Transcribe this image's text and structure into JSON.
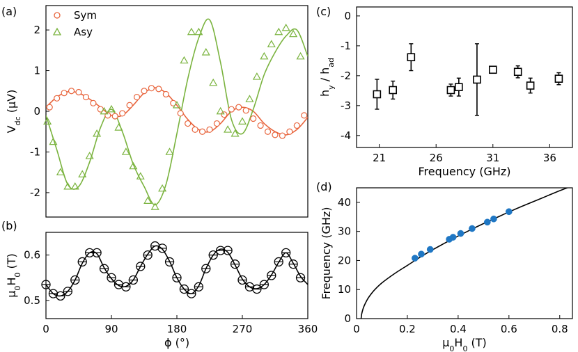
{
  "chart_data": [
    {
      "id": "a",
      "panel_label": "(a)",
      "type": "scatter",
      "xlim": [
        0,
        360
      ],
      "ylim": [
        -2.6,
        2.6
      ],
      "yticks": [
        2,
        1,
        0,
        -1,
        -2
      ],
      "ytick_labels": [
        "2",
        "1",
        "0",
        "-1",
        "-2"
      ],
      "ylabel": {
        "main": "V",
        "sub": "dc",
        "rest": " (μV)"
      },
      "legend": {
        "position": "top-left",
        "entries": [
          "Sym",
          "Asy"
        ]
      },
      "grid": false,
      "series": [
        {
          "name": "Sym",
          "color": "#e8643c",
          "marker": "circle",
          "x": [
            5,
            15,
            25,
            35,
            45,
            55,
            65,
            75,
            85,
            95,
            105,
            115,
            125,
            135,
            145,
            155,
            165,
            175,
            185,
            195,
            205,
            215,
            225,
            235,
            245,
            255,
            265,
            275,
            285,
            295,
            305,
            315,
            325,
            335,
            345,
            355
          ],
          "y": [
            0.1,
            0.32,
            0.45,
            0.5,
            0.47,
            0.35,
            0.2,
            0.05,
            -0.1,
            -0.12,
            -0.05,
            0.15,
            0.35,
            0.5,
            0.57,
            0.55,
            0.42,
            0.2,
            -0.05,
            -0.3,
            -0.45,
            -0.5,
            -0.45,
            -0.3,
            -0.08,
            0.05,
            0.1,
            0.02,
            -0.18,
            -0.35,
            -0.5,
            -0.58,
            -0.6,
            -0.5,
            -0.35,
            -0.1
          ]
        },
        {
          "name": "Asy",
          "color": "#7ab33e",
          "marker": "triangle",
          "x": [
            2,
            10,
            20,
            30,
            40,
            50,
            60,
            70,
            80,
            90,
            100,
            110,
            120,
            130,
            140,
            150,
            160,
            170,
            180,
            190,
            200,
            210,
            220,
            230,
            240,
            250,
            260,
            270,
            280,
            290,
            300,
            310,
            320,
            330,
            340,
            350
          ],
          "y": [
            -0.25,
            -0.75,
            -1.5,
            -1.85,
            -1.85,
            -1.55,
            -1.1,
            -0.55,
            0.0,
            0.05,
            -0.4,
            -1.0,
            -1.35,
            -1.6,
            -2.2,
            -2.35,
            -1.9,
            -1.0,
            0.15,
            1.25,
            1.95,
            1.95,
            1.45,
            0.7,
            0.0,
            -0.45,
            -0.55,
            -0.25,
            0.3,
            0.85,
            1.35,
            1.65,
            1.95,
            2.05,
            1.9,
            1.35
          ]
        }
      ],
      "fit_curves": [
        {
          "color": "#e8643c",
          "x": [
            0,
            15,
            30,
            45,
            60,
            75,
            90,
            105,
            120,
            135,
            150,
            165,
            180,
            195,
            210,
            225,
            240,
            255,
            270,
            285,
            300,
            315,
            330,
            345,
            360
          ],
          "y": [
            0.1,
            0.35,
            0.48,
            0.45,
            0.3,
            0.1,
            -0.1,
            -0.1,
            0.15,
            0.45,
            0.58,
            0.45,
            0.15,
            -0.2,
            -0.45,
            -0.5,
            -0.3,
            0.0,
            0.1,
            0.0,
            -0.3,
            -0.5,
            -0.58,
            -0.45,
            -0.15
          ]
        },
        {
          "color": "#7ab33e",
          "x": [
            0,
            15,
            30,
            45,
            60,
            75,
            90,
            105,
            120,
            135,
            150,
            165,
            180,
            195,
            210,
            225,
            240,
            255,
            270,
            285,
            300,
            315,
            330,
            345,
            360
          ],
          "y": [
            -0.1,
            -0.95,
            -1.8,
            -1.85,
            -1.25,
            -0.4,
            0.05,
            -0.5,
            -1.3,
            -1.85,
            -2.3,
            -1.8,
            -0.55,
            0.8,
            1.8,
            2.25,
            1.2,
            -0.2,
            -0.55,
            0.05,
            0.9,
            1.45,
            1.85,
            2.0,
            1.35
          ]
        }
      ]
    },
    {
      "id": "b",
      "panel_label": "(b)",
      "type": "line",
      "xlim": [
        0,
        360
      ],
      "ylim": [
        0.46,
        0.65
      ],
      "xticks": [
        0,
        90,
        180,
        270,
        360
      ],
      "xtick_labels": [
        "0",
        "90",
        "180",
        "270",
        "360"
      ],
      "yticks": [
        0.6,
        0.5
      ],
      "ytick_labels": [
        "0.6",
        "0.5"
      ],
      "xlabel": "ϕ (°)",
      "ylabel": {
        "main": "μ",
        "sub1": "0",
        "mid": "H",
        "sub2": "0",
        "rest": " (T)"
      },
      "grid": false,
      "series": [
        {
          "color": "#000000",
          "marker": "circle-cross",
          "x": [
            0,
            10,
            20,
            30,
            40,
            50,
            60,
            70,
            80,
            90,
            100,
            110,
            120,
            130,
            140,
            150,
            160,
            170,
            180,
            190,
            200,
            210,
            220,
            230,
            240,
            250,
            260,
            270,
            280,
            290,
            300,
            310,
            320,
            330,
            340,
            350
          ],
          "y": [
            0.535,
            0.515,
            0.51,
            0.52,
            0.545,
            0.585,
            0.605,
            0.605,
            0.57,
            0.55,
            0.535,
            0.53,
            0.545,
            0.575,
            0.6,
            0.62,
            0.615,
            0.585,
            0.55,
            0.525,
            0.515,
            0.53,
            0.57,
            0.6,
            0.61,
            0.61,
            0.58,
            0.545,
            0.53,
            0.525,
            0.535,
            0.555,
            0.585,
            0.605,
            0.58,
            0.55
          ]
        }
      ],
      "fit_curves": [
        {
          "color": "#000000",
          "x": [
            0,
            10,
            20,
            30,
            40,
            50,
            60,
            70,
            80,
            90,
            100,
            110,
            120,
            130,
            140,
            150,
            160,
            170,
            180,
            190,
            200,
            210,
            220,
            230,
            240,
            250,
            260,
            270,
            280,
            290,
            300,
            310,
            320,
            330,
            340,
            350,
            360
          ],
          "y": [
            0.535,
            0.515,
            0.51,
            0.52,
            0.545,
            0.582,
            0.605,
            0.603,
            0.572,
            0.548,
            0.533,
            0.531,
            0.545,
            0.575,
            0.602,
            0.62,
            0.613,
            0.586,
            0.55,
            0.525,
            0.515,
            0.532,
            0.57,
            0.6,
            0.613,
            0.606,
            0.578,
            0.547,
            0.53,
            0.526,
            0.535,
            0.556,
            0.584,
            0.605,
            0.582,
            0.553,
            0.535
          ]
        }
      ]
    },
    {
      "id": "c",
      "panel_label": "(c)",
      "type": "scatter",
      "xlim": [
        19,
        38
      ],
      "ylim": [
        -4.4,
        0.3
      ],
      "xticks": [
        21,
        26,
        31,
        36
      ],
      "xtick_labels": [
        "21",
        "26",
        "31",
        "36"
      ],
      "yticks": [
        0,
        -1,
        -2,
        -3,
        -4
      ],
      "ytick_labels": [
        "0",
        "-1",
        "-2",
        "-3",
        "-4"
      ],
      "xlabel": "Frequency (GHz)",
      "ylabel": {
        "main": "h",
        "sub1": "y",
        "mid": " / h",
        "sub2": "ad"
      },
      "grid": false,
      "series": [
        {
          "color": "#000000",
          "marker": "open-square",
          "x": [
            20.8,
            22.2,
            23.8,
            27.3,
            28.0,
            29.6,
            31.0,
            33.2,
            34.3,
            36.8
          ],
          "y": [
            -2.62,
            -2.48,
            -1.38,
            -2.48,
            -2.38,
            -2.13,
            -1.8,
            -1.87,
            -2.33,
            -2.1
          ],
          "err": [
            0.5,
            0.3,
            0.45,
            0.2,
            0.3,
            1.2,
            0.1,
            0.2,
            0.25,
            0.2
          ]
        }
      ]
    },
    {
      "id": "d",
      "panel_label": "(d)",
      "type": "scatter",
      "xlim": [
        0,
        0.85
      ],
      "ylim": [
        0,
        45
      ],
      "xticks": [
        0,
        0.2,
        0.4,
        0.6,
        0.8
      ],
      "xtick_labels": [
        "0",
        "0.2",
        "0.4",
        "0.6",
        "0.8"
      ],
      "yticks": [
        0,
        10,
        20,
        30,
        40
      ],
      "ytick_labels": [
        "0",
        "10",
        "20",
        "30",
        "40"
      ],
      "xlabel": {
        "main": "μ",
        "sub1": "0",
        "mid": "H",
        "sub2": "0",
        "rest": " (T)"
      },
      "ylabel": "Frequency (GHz)",
      "grid": false,
      "series": [
        {
          "color": "#1f77c4",
          "marker": "filled-circle",
          "x": [
            0.23,
            0.255,
            0.29,
            0.365,
            0.38,
            0.41,
            0.455,
            0.515,
            0.54,
            0.6
          ],
          "y": [
            20.8,
            22.2,
            23.8,
            27.3,
            28.0,
            29.3,
            31.0,
            33.2,
            34.3,
            36.8
          ]
        }
      ],
      "fit_curves": [
        {
          "color": "#000000",
          "x": [
            0.018,
            0.02,
            0.025,
            0.03,
            0.04,
            0.05,
            0.07,
            0.1,
            0.15,
            0.2,
            0.25,
            0.3,
            0.35,
            0.4,
            0.45,
            0.5,
            0.55,
            0.6,
            0.65,
            0.7,
            0.75,
            0.8,
            0.85
          ],
          "y": [
            0,
            1.5,
            3.2,
            4.4,
            6.2,
            7.6,
            9.8,
            12.3,
            15.5,
            18.3,
            21.1,
            23.7,
            26.1,
            28.4,
            30.6,
            32.7,
            34.7,
            36.7,
            38.6,
            40.4,
            42.2,
            44.0,
            45.7
          ]
        }
      ]
    }
  ]
}
